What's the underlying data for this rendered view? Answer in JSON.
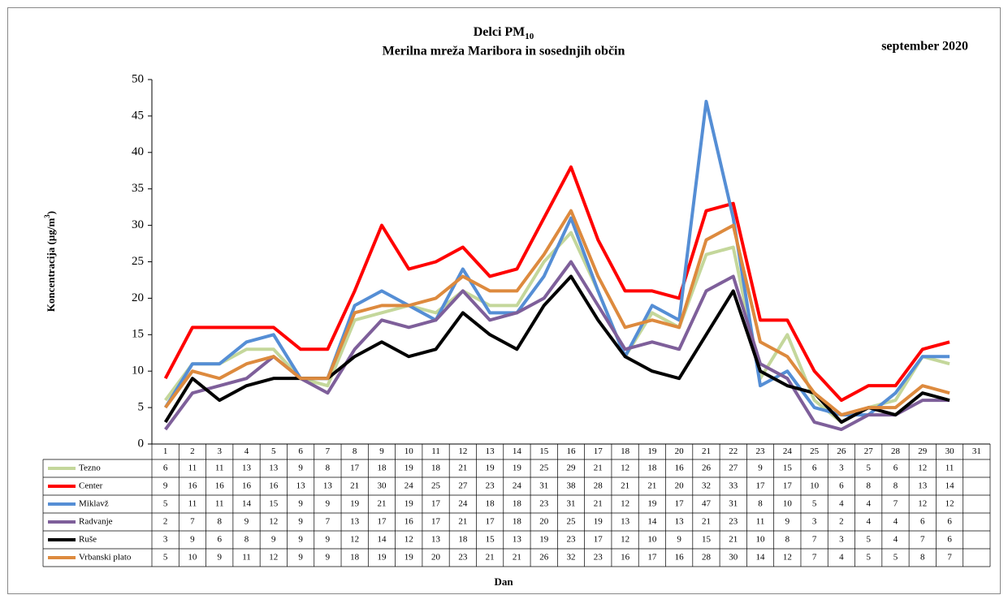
{
  "chart_data": {
    "type": "line",
    "title": "Delci PM",
    "title_subscript": "10",
    "subtitle": "Merilna mreža Maribora  in sosednjih občin",
    "period": "september 2020",
    "y_label": "Koncentracija  (µg/m",
    "y_label_superscript": "3",
    "y_label_end": ")",
    "x_label": "Dan",
    "categories": [
      "1",
      "2",
      "3",
      "4",
      "5",
      "6",
      "7",
      "8",
      "9",
      "10",
      "11",
      "12",
      "13",
      "14",
      "15",
      "16",
      "17",
      "18",
      "19",
      "20",
      "21",
      "22",
      "23",
      "24",
      "25",
      "26",
      "27",
      "28",
      "29",
      "30",
      "31"
    ],
    "ylim": [
      0,
      50
    ],
    "yticks": [
      0,
      5,
      10,
      15,
      20,
      25,
      30,
      35,
      40,
      45,
      50
    ],
    "series": [
      {
        "name": "Tezno",
        "color": "#c4d79b",
        "values": [
          6,
          11,
          11,
          13,
          13,
          9,
          8,
          17,
          18,
          19,
          18,
          21,
          19,
          19,
          25,
          29,
          21,
          12,
          18,
          16,
          26,
          27,
          9,
          15,
          6,
          3,
          5,
          6,
          12,
          11,
          null
        ]
      },
      {
        "name": "Center",
        "color": "#ff0000",
        "values": [
          9,
          16,
          16,
          16,
          16,
          13,
          13,
          21,
          30,
          24,
          25,
          27,
          23,
          24,
          31,
          38,
          28,
          21,
          21,
          20,
          32,
          33,
          17,
          17,
          10,
          6,
          8,
          8,
          13,
          14,
          null
        ]
      },
      {
        "name": "Miklavž",
        "color": "#558ed5",
        "values": [
          5,
          11,
          11,
          14,
          15,
          9,
          9,
          19,
          21,
          19,
          17,
          24,
          18,
          18,
          23,
          31,
          21,
          12,
          19,
          17,
          47,
          31,
          8,
          10,
          5,
          4,
          4,
          7,
          12,
          12,
          null
        ]
      },
      {
        "name": "Radvanje",
        "color": "#7e5f9a",
        "values": [
          2,
          7,
          8,
          9,
          12,
          9,
          7,
          13,
          17,
          16,
          17,
          21,
          17,
          18,
          20,
          25,
          19,
          13,
          14,
          13,
          21,
          23,
          11,
          9,
          3,
          2,
          4,
          4,
          6,
          6,
          null
        ]
      },
      {
        "name": "Ruše",
        "color": "#000000",
        "values": [
          3,
          9,
          6,
          8,
          9,
          9,
          9,
          12,
          14,
          12,
          13,
          18,
          15,
          13,
          19,
          23,
          17,
          12,
          10,
          9,
          15,
          21,
          10,
          8,
          7,
          3,
          5,
          4,
          7,
          6,
          null
        ]
      },
      {
        "name": "Vrbanski plato",
        "color": "#dd8a3e",
        "values": [
          5,
          10,
          9,
          11,
          12,
          9,
          9,
          18,
          19,
          19,
          20,
          23,
          21,
          21,
          26,
          32,
          23,
          16,
          17,
          16,
          28,
          30,
          14,
          12,
          7,
          4,
          5,
          5,
          8,
          7,
          null
        ]
      }
    ]
  }
}
